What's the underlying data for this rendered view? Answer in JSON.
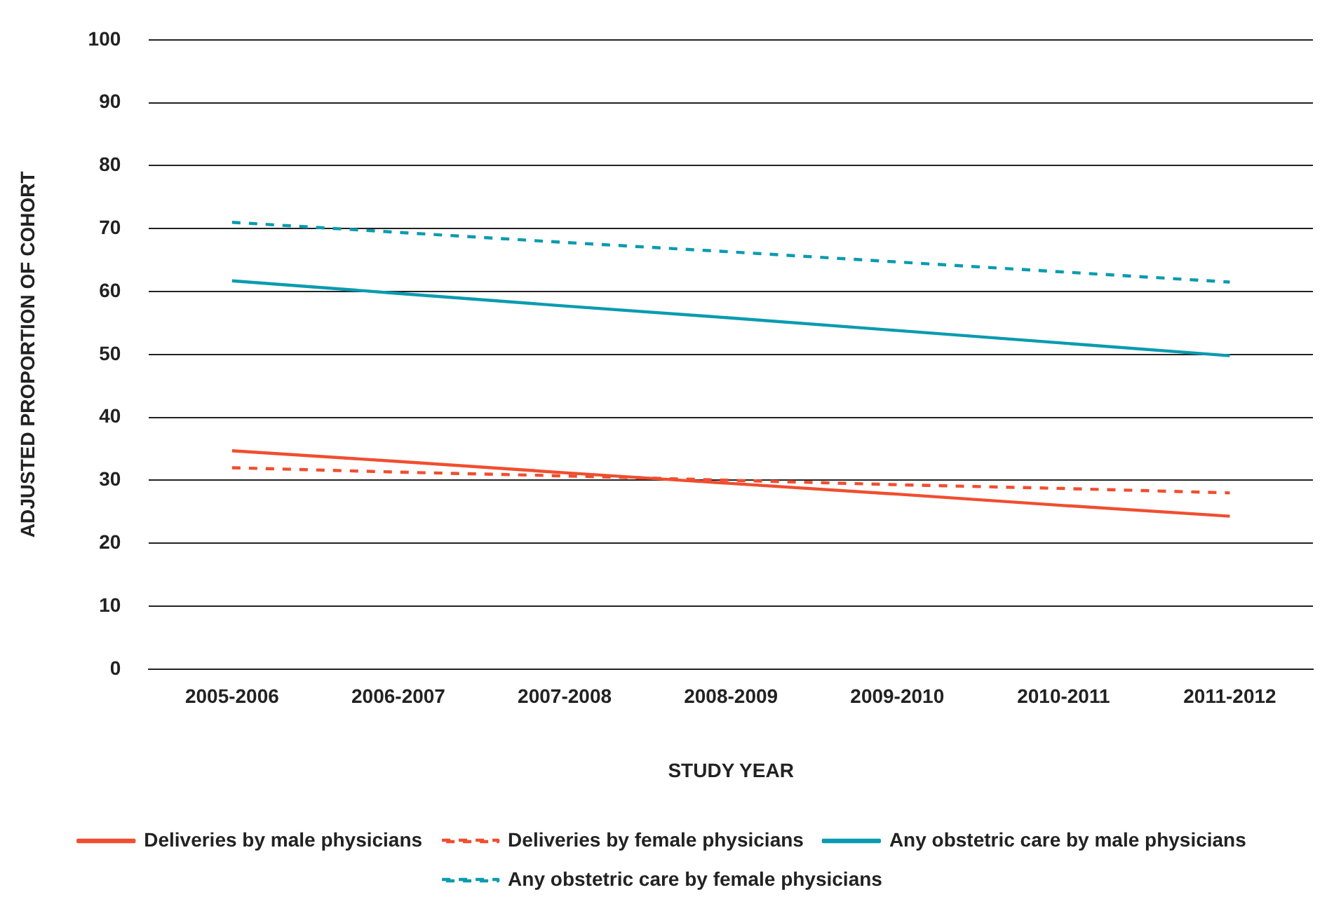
{
  "chart_data": {
    "type": "line",
    "xlabel": "STUDY YEAR",
    "ylabel": "ADJUSTED PROPORTION OF COHORT",
    "categories": [
      "2005-2006",
      "2006-2007",
      "2007-2008",
      "2008-2009",
      "2009-2010",
      "2010-2011",
      "2011-2012"
    ],
    "series": [
      {
        "name": "Deliveries by male physicians",
        "color": "#f04e30",
        "line_style": "solid",
        "values": [
          34.7,
          33.0,
          31.2,
          29.5,
          27.8,
          26.0,
          24.3
        ]
      },
      {
        "name": "Deliveries by female physicians",
        "color": "#f04e30",
        "line_style": "dashed",
        "values": [
          32.0,
          31.3,
          30.7,
          30.0,
          29.3,
          28.7,
          28.0
        ]
      },
      {
        "name": "Any obstetric care by male physicians",
        "color": "#0a9bb0",
        "line_style": "solid",
        "values": [
          61.7,
          59.7,
          57.7,
          55.8,
          53.8,
          51.8,
          49.8
        ]
      },
      {
        "name": "Any obstetric care by female physicians",
        "color": "#0a9bb0",
        "line_style": "dashed",
        "values": [
          71.0,
          69.4,
          67.8,
          66.3,
          64.7,
          63.1,
          61.5
        ]
      }
    ],
    "ylim": [
      0,
      100
    ],
    "yticks": [
      0,
      10,
      20,
      30,
      40,
      50,
      60,
      70,
      80,
      90,
      100
    ],
    "grid": "y",
    "legend": "bottom",
    "marker": "none"
  }
}
